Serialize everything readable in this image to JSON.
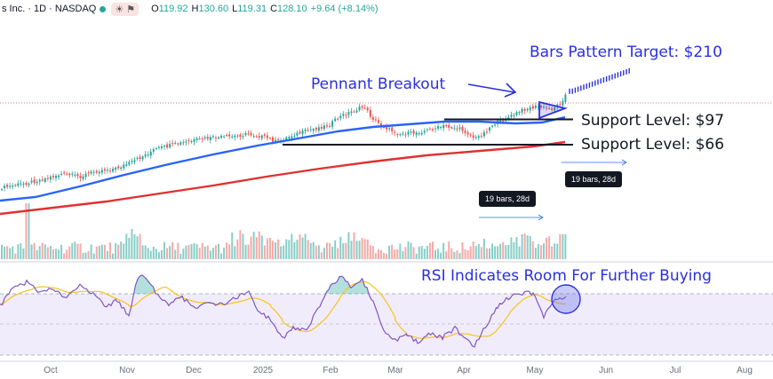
{
  "header": {
    "ticker": "s Inc. · 1D · NASDAQ",
    "ohlc": [
      {
        "label": "O",
        "value": "119.92"
      },
      {
        "label": "H",
        "value": "130.60"
      },
      {
        "label": "L",
        "value": "119.31"
      },
      {
        "label": "C",
        "value": "128.10"
      },
      {
        "label": "",
        "value": "+9.64 (+8.14%)"
      }
    ]
  },
  "annotations": {
    "target": "Bars Pattern Target: $210",
    "pennant": "Pennant Breakout",
    "support1": "Support Level: $97",
    "support2": "Support Level: $66",
    "rsi": "RSI Indicates Room For Further Buying"
  },
  "tags": {
    "range1": "19 bars, 28d",
    "range2": "19 bars, 28d"
  },
  "chart_data": {
    "type": "candlestick",
    "x_axis_labels": [
      "Oct",
      "Nov",
      "Dec",
      "2025",
      "Feb",
      "Mar",
      "Apr",
      "May",
      "Jun",
      "Jul",
      "Aug"
    ],
    "last_close": 128.1,
    "support_levels": [
      97,
      66
    ],
    "target": 210,
    "colors": {
      "up": "#26a69a",
      "down": "#ef5350",
      "ma50": "#2962ff",
      "ma200": "#e03131",
      "rsi": "#7e57c2",
      "rsi_ma": "#f5c518",
      "annotation": "#2a2fe0"
    }
  }
}
